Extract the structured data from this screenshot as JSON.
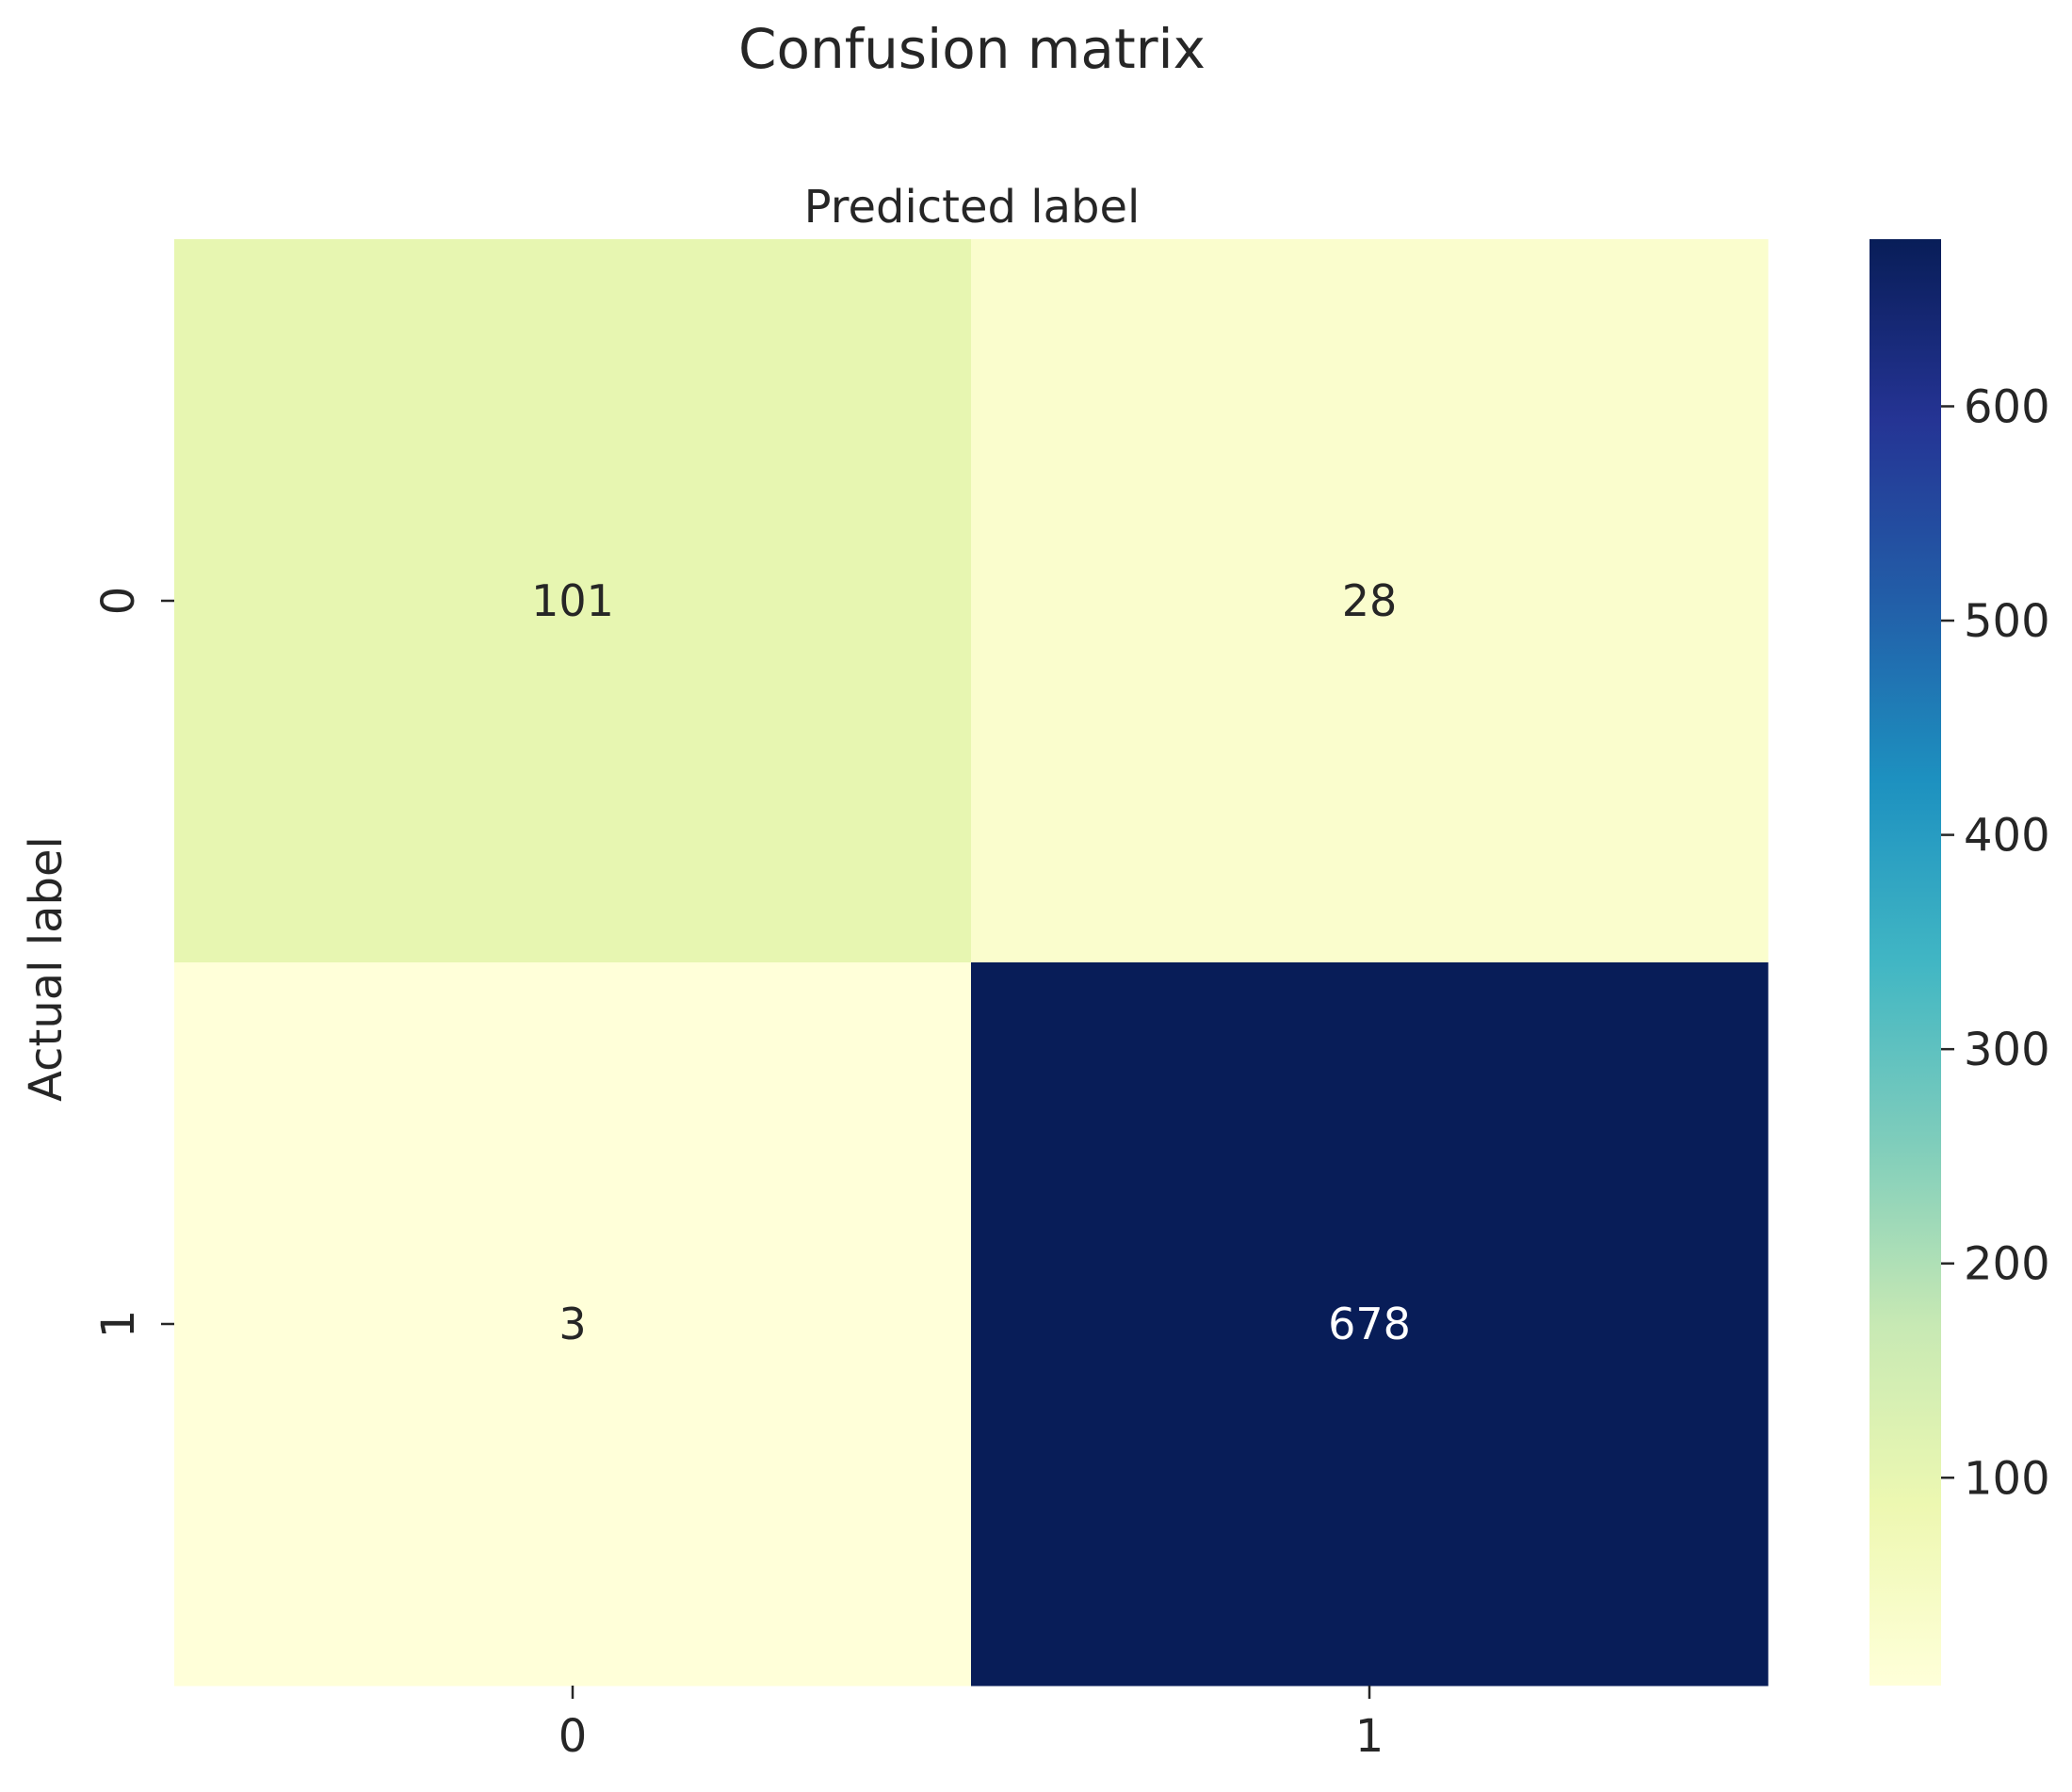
{
  "chart_data": {
    "type": "heatmap",
    "title": "Confusion matrix",
    "xlabel": "Predicted label",
    "ylabel": "Actual label",
    "x_categories": [
      "0",
      "1"
    ],
    "y_categories": [
      "0",
      "1"
    ],
    "matrix": [
      [
        101,
        28
      ],
      [
        3,
        678
      ]
    ],
    "colormap": "YlGnBu",
    "colorbar": {
      "range": [
        3,
        678
      ],
      "ticks": [
        100,
        200,
        300,
        400,
        500,
        600
      ]
    },
    "xaxis_position": "top-label-bottom-ticks"
  }
}
